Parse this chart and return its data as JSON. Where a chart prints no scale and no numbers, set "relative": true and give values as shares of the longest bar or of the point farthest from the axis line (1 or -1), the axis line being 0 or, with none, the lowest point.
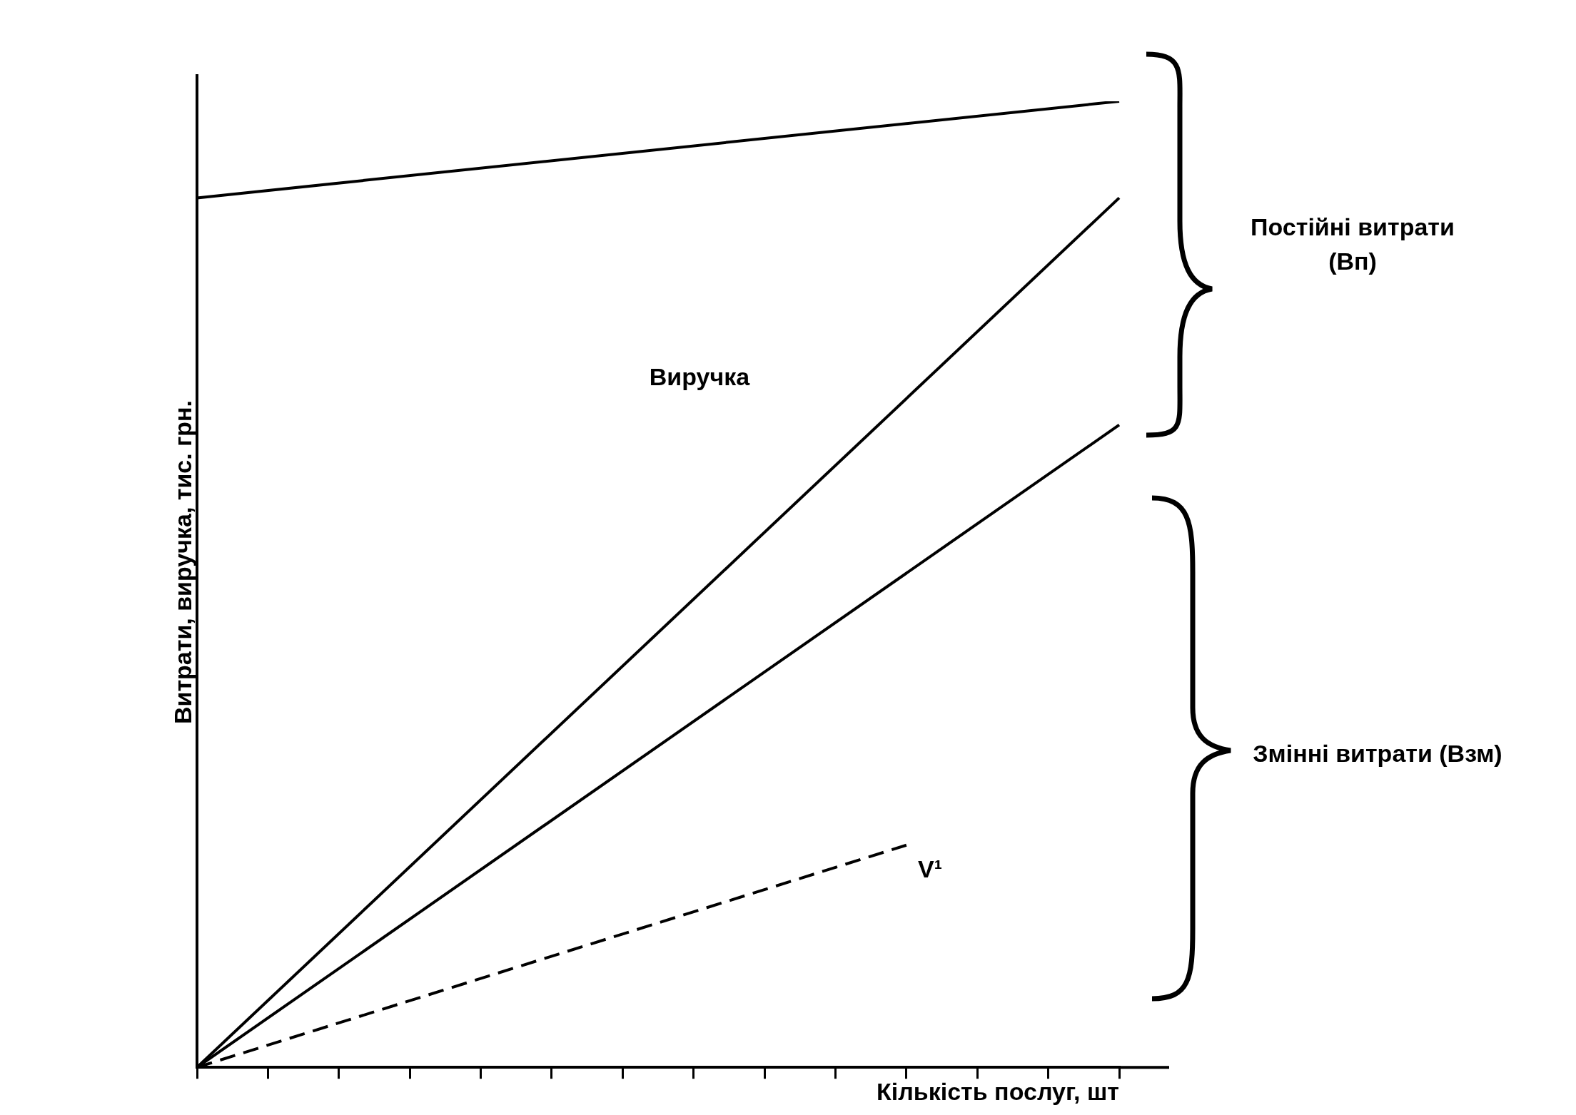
{
  "chart_data": {
    "type": "line",
    "relative": true,
    "marker": "none",
    "ylabel": "Витрати, виручка, тис. грн.",
    "xlabel": "Кількість послуг, шт",
    "categories": [
      null,
      null,
      null,
      null,
      null,
      null,
      null,
      null,
      null,
      null,
      null,
      null,
      null,
      null
    ],
    "series": [
      {
        "color": "#000000",
        "values": [
          0.9,
          null,
          null,
          null,
          null,
          null,
          null,
          null,
          null,
          null,
          null,
          null,
          null,
          1.0
        ]
      },
      {
        "color": "#000000",
        "values": [
          0,
          null,
          null,
          null,
          null,
          null,
          null,
          null,
          null,
          null,
          null,
          null,
          null,
          0.9
        ]
      },
      {
        "color": "#000000",
        "values": [
          0,
          null,
          null,
          null,
          null,
          null,
          null,
          null,
          null,
          null,
          null,
          null,
          null,
          0.665
        ]
      },
      {
        "color": "#000000",
        "line_style": "dashed",
        "values": [
          0,
          null,
          null,
          null,
          null,
          null,
          null,
          null,
          null,
          null,
          0.23,
          null,
          null,
          null
        ]
      }
    ],
    "annotations": [
      "Виручка",
      "V¹",
      "Постійні витрати (Вп)",
      "Змінні витрати (Взм)"
    ]
  }
}
